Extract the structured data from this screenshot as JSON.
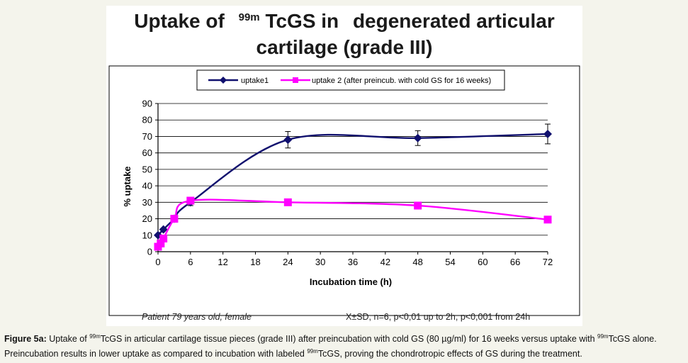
{
  "chart_data": {
    "type": "line",
    "title_parts": {
      "a": "Uptake of",
      "sup": "99m",
      "b": "TcGS in",
      "c": "degenerated articular"
    },
    "title_line2": "cartilage (grade III)",
    "xlabel": "Incubation time (h)",
    "ylabel": "% uptake",
    "ylim": [
      0,
      90
    ],
    "y_ticks": [
      "0",
      "10",
      "20",
      "30",
      "40",
      "50",
      "60",
      "70",
      "80",
      "90"
    ],
    "x_tick_labels": [
      "0",
      "6",
      "12",
      "18",
      "24",
      "30",
      "36",
      "42",
      "48",
      "54",
      "60",
      "66",
      "72"
    ],
    "grid": "horizontal",
    "legend_position": "top",
    "series": [
      {
        "name": "uptake1",
        "color": "#10106e",
        "marker": "diamond",
        "x": [
          0,
          1,
          3,
          6,
          24,
          48,
          72
        ],
        "y": [
          10,
          13.5,
          20,
          30,
          68,
          69,
          71.5
        ],
        "err": [
          0,
          0,
          0,
          2,
          5,
          4.5,
          6
        ]
      },
      {
        "name": "uptake 2 (after preincub. with cold GS for 16 weeks)",
        "color": "#ff00ff",
        "marker": "square",
        "x": [
          0,
          0.5,
          1,
          3,
          6,
          24,
          48,
          72
        ],
        "y": [
          3,
          5,
          8,
          20,
          31,
          30,
          28,
          19.5
        ],
        "err": [
          0,
          0,
          0,
          0,
          2,
          2,
          2,
          0
        ]
      }
    ]
  },
  "notes": {
    "left": "Patient 79 years old, female",
    "right": "X±SD, n=6, p<0,01 up to 2h, p<0,001 from 24h"
  },
  "caption": {
    "label": "Figure 5a:",
    "t1": " Uptake of ",
    "sup1": "99m",
    "t2": "TcGS in articular cartilage tissue pieces (grade III) after preincubation with cold GS (80 µg/ml) for 16 weeks versus uptake with ",
    "sup2": "99m",
    "t3": "TcGS alone. Preincubation results in lower uptake as compared to incubation with labeled ",
    "sup3": "99m",
    "t4": "TcGS, proving the chondrotropic effects of GS during the treatment."
  }
}
